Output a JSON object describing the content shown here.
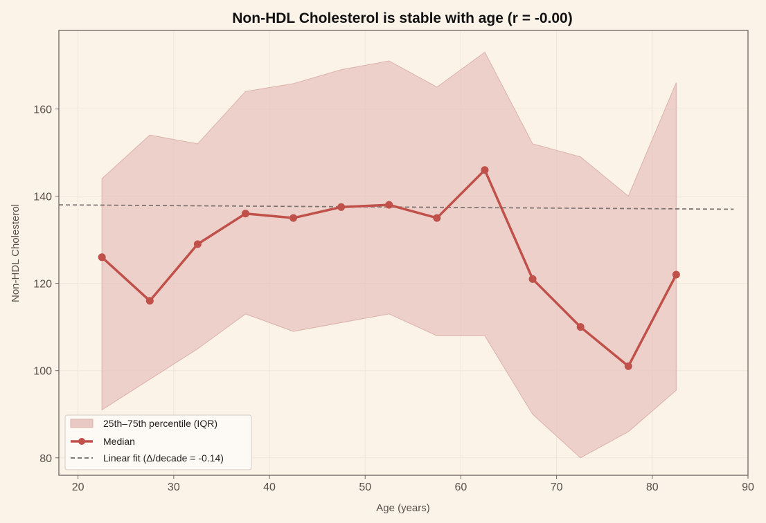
{
  "chart_data": {
    "type": "line",
    "title": "Non-HDL Cholesterol is stable with age (r = -0.00)",
    "xlabel": "Age (years)",
    "ylabel": "Non-HDL Cholesterol",
    "xlim": [
      18,
      90
    ],
    "ylim": [
      76,
      178
    ],
    "xticks": [
      20,
      30,
      40,
      50,
      60,
      70,
      80,
      90
    ],
    "yticks": [
      80,
      100,
      120,
      140,
      160
    ],
    "grid": true,
    "legend_position": "lower-left",
    "x": [
      22.5,
      27.5,
      32.5,
      37.5,
      42.5,
      47.5,
      52.5,
      57.5,
      62.5,
      67.5,
      72.5,
      77.5,
      82.5
    ],
    "series": [
      {
        "name": "Median",
        "kind": "line-markers",
        "color": "#c0504a",
        "values": [
          126,
          116,
          129,
          136,
          135,
          137.5,
          138,
          135,
          146,
          121,
          110,
          101,
          122
        ]
      },
      {
        "name": "25th–75th percentile (IQR)",
        "kind": "band",
        "color": "#e9c9c3",
        "lower": [
          91,
          98,
          105,
          113,
          109,
          111,
          113,
          108,
          108,
          90,
          80,
          86,
          95.5
        ],
        "upper": [
          144,
          154,
          152,
          164,
          165.8,
          169,
          171,
          165,
          173,
          152,
          149,
          140,
          166
        ]
      },
      {
        "name": "Linear fit (Δ/decade = -0.14)",
        "kind": "dashed-line",
        "color": "#807674",
        "x": [
          18,
          88.5
        ],
        "values": [
          138,
          137
        ]
      }
    ]
  }
}
